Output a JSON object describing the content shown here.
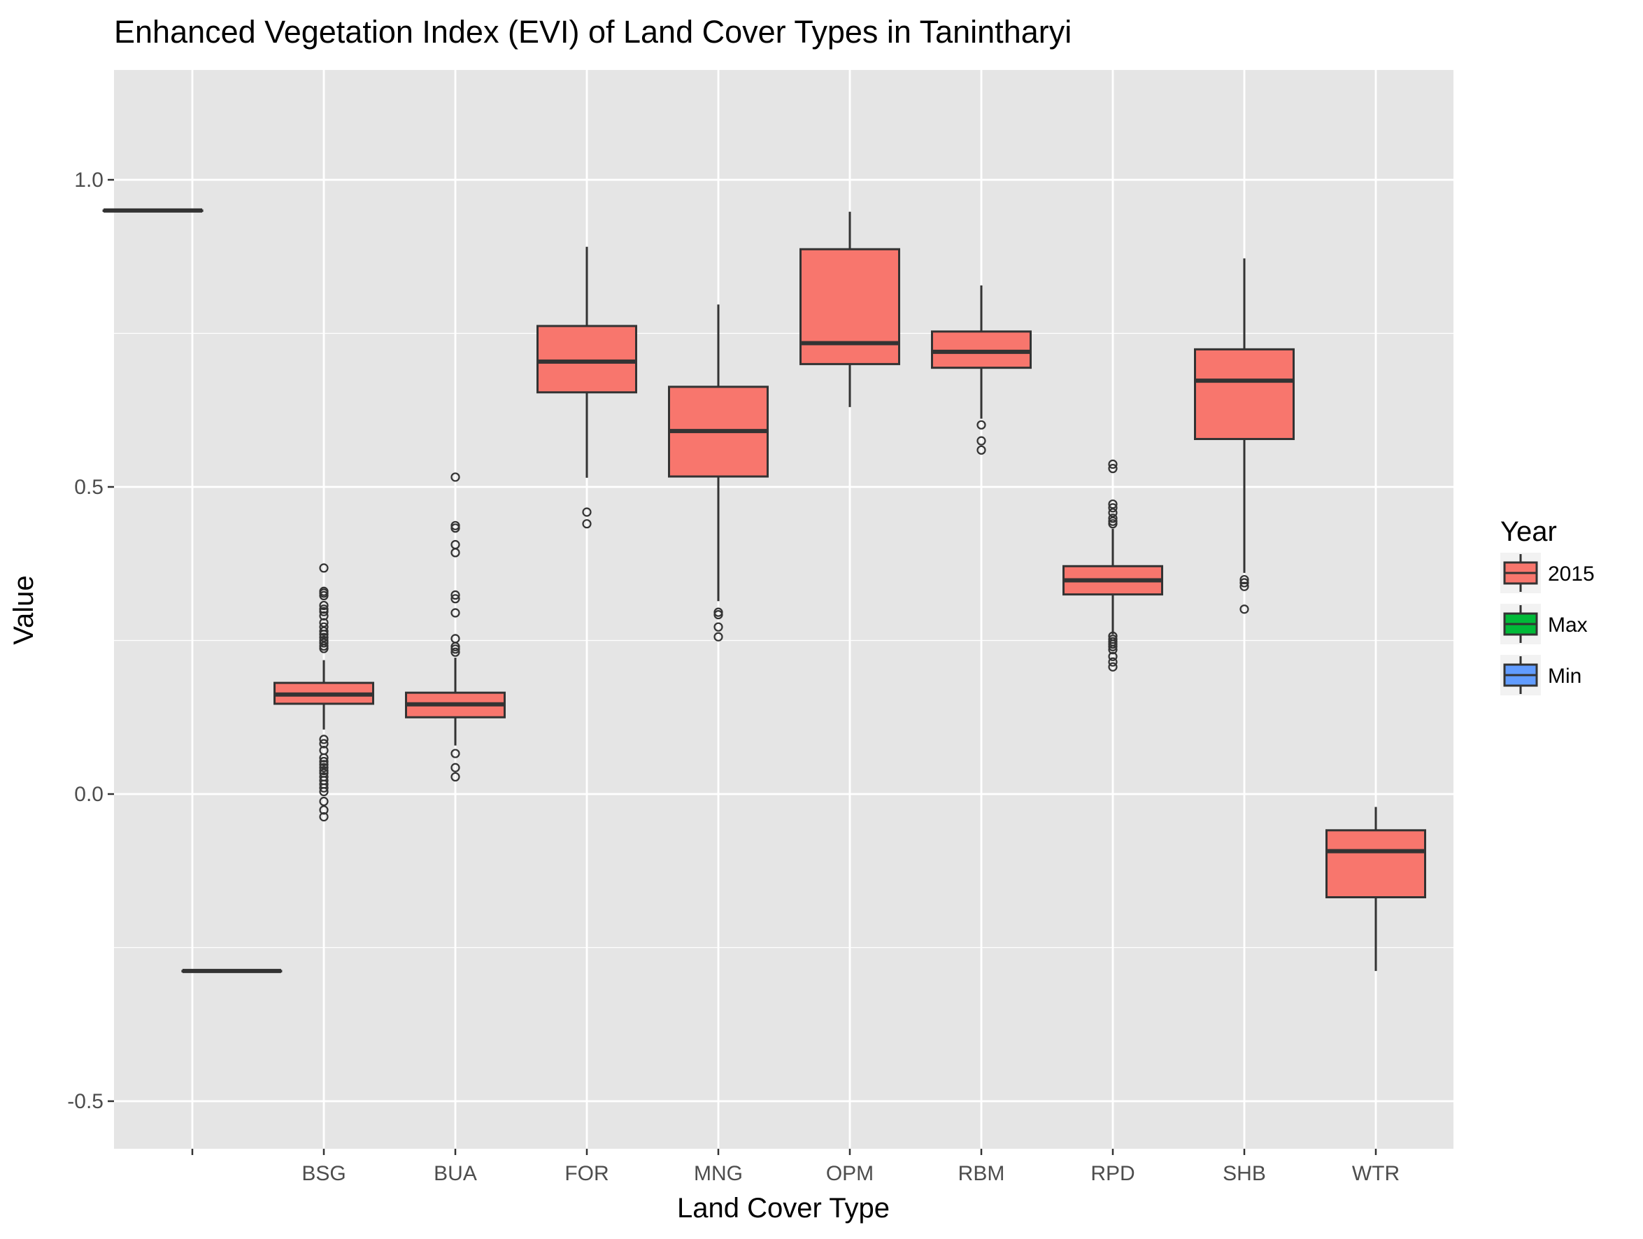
{
  "chart_data": {
    "type": "boxplot",
    "title": "Enhanced Vegetation Index (EVI) of Land Cover Types in Tanintharyi",
    "xlabel": "Land Cover Type",
    "ylabel": "Value",
    "ylim": [
      -0.57,
      1.18
    ],
    "y_ticks": [
      -0.5,
      0.0,
      0.5,
      1.0
    ],
    "y_tick_labels": [
      "-0.5",
      "0.0",
      "0.5",
      "1.0"
    ],
    "categories": [
      "",
      "BSG",
      "BUA",
      "FOR",
      "MNG",
      "OPM",
      "RBM",
      "RPD",
      "SHB",
      "WTR"
    ],
    "grid": true,
    "legend": {
      "title": "Year",
      "placement": "right",
      "entries": [
        {
          "label": "2015",
          "color": "#F8766D"
        },
        {
          "label": "Max",
          "color": "#00BA38"
        },
        {
          "label": "Min",
          "color": "#619CFF"
        }
      ]
    },
    "series": [
      {
        "name": "2015",
        "color": "#F8766D",
        "boxes": [
          {
            "category": "BSG",
            "whisker_low": 0.105,
            "q1": 0.147,
            "median": 0.162,
            "q3": 0.181,
            "whisker_high": 0.218,
            "outliers": [
              0.368,
              0.33,
              0.327,
              0.323,
              0.307,
              0.301,
              0.297,
              0.29,
              0.279,
              0.272,
              0.265,
              0.26,
              0.255,
              0.25,
              0.246,
              0.241,
              0.237,
              0.089,
              0.082,
              0.071,
              0.059,
              0.053,
              0.048,
              0.043,
              0.038,
              0.034,
              0.028,
              0.022,
              0.016,
              0.01,
              0.004,
              -0.012,
              -0.026,
              -0.037
            ]
          },
          {
            "category": "BUA",
            "whisker_low": 0.079,
            "q1": 0.125,
            "median": 0.146,
            "q3": 0.165,
            "whisker_high": 0.222,
            "outliers": [
              0.516,
              0.437,
              0.433,
              0.406,
              0.393,
              0.324,
              0.318,
              0.295,
              0.253,
              0.24,
              0.236,
              0.231,
              0.066,
              0.043,
              0.028
            ]
          },
          {
            "category": "FOR",
            "whisker_low": 0.515,
            "q1": 0.654,
            "median": 0.704,
            "q3": 0.762,
            "whisker_high": 0.891,
            "outliers": [
              0.459,
              0.44
            ]
          },
          {
            "category": "MNG",
            "whisker_low": 0.314,
            "q1": 0.517,
            "median": 0.591,
            "q3": 0.663,
            "whisker_high": 0.797,
            "outliers": [
              0.296,
              0.292,
              0.272,
              0.256
            ]
          },
          {
            "category": "OPM",
            "whisker_low": 0.63,
            "q1": 0.7,
            "median": 0.734,
            "q3": 0.887,
            "whisker_high": 0.948,
            "outliers": []
          },
          {
            "category": "RBM",
            "whisker_low": 0.611,
            "q1": 0.694,
            "median": 0.72,
            "q3": 0.753,
            "whisker_high": 0.828,
            "outliers": [
              0.601,
              0.575,
              0.56
            ]
          },
          {
            "category": "RPD",
            "whisker_low": 0.26,
            "q1": 0.325,
            "median": 0.348,
            "q3": 0.371,
            "whisker_high": 0.432,
            "outliers": [
              0.537,
              0.53,
              0.472,
              0.466,
              0.458,
              0.449,
              0.444,
              0.44,
              0.257,
              0.252,
              0.248,
              0.244,
              0.24,
              0.235,
              0.224,
              0.215,
              0.207
            ]
          },
          {
            "category": "SHB",
            "whisker_low": 0.36,
            "q1": 0.578,
            "median": 0.673,
            "q3": 0.724,
            "whisker_high": 0.872,
            "outliers": [
              0.349,
              0.344,
              0.338,
              0.301
            ]
          },
          {
            "category": "WTR",
            "whisker_low": -0.288,
            "q1": -0.168,
            "median": -0.093,
            "q3": -0.059,
            "whisker_high": -0.021,
            "outliers": []
          }
        ]
      },
      {
        "name": "Max",
        "color": "#00BA38",
        "boxes": [
          {
            "category": "",
            "offset": -0.3,
            "whisker_low": 0.95,
            "q1": 0.95,
            "median": 0.95,
            "q3": 0.95,
            "whisker_high": 0.95,
            "outliers": []
          }
        ]
      },
      {
        "name": "Min",
        "color": "#619CFF",
        "boxes": [
          {
            "category": "",
            "offset": 0.3,
            "whisker_low": -0.288,
            "q1": -0.288,
            "median": -0.288,
            "q3": -0.288,
            "whisker_high": -0.288,
            "outliers": []
          }
        ]
      }
    ]
  }
}
